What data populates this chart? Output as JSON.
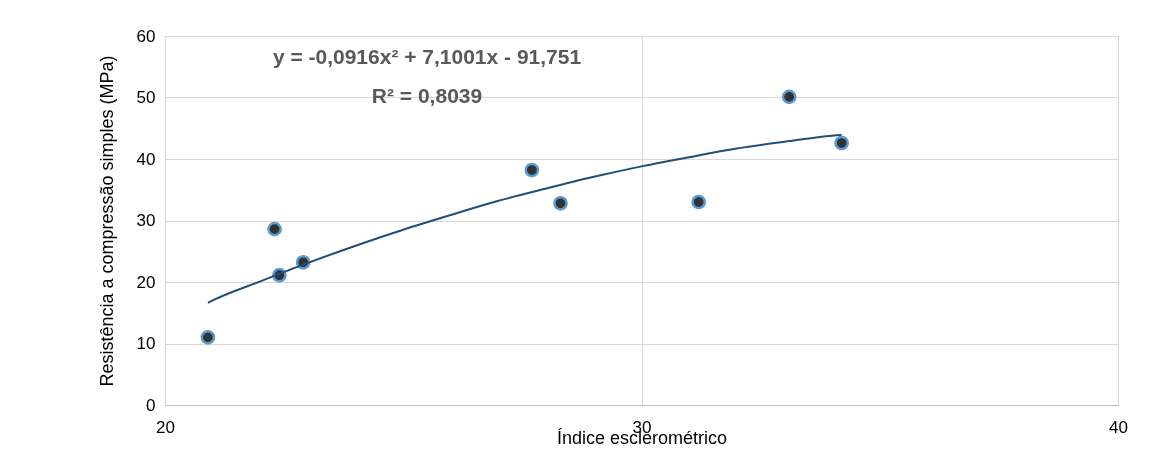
{
  "chart_data": {
    "type": "scatter",
    "xlabel": "Índice esclerométrico",
    "ylabel": "Resistência a compressão simples (MPa)",
    "xlim": [
      20,
      40
    ],
    "xticks": [
      20,
      30,
      40
    ],
    "ylim": [
      0,
      60
    ],
    "yticks": [
      0,
      10,
      20,
      30,
      40,
      50,
      60
    ],
    "grid": true,
    "annotations": [
      "y = -0,0916x² + 7,1001x - 91,751",
      "R² = 0,8039"
    ],
    "series": [
      {
        "color": "#333333",
        "marker": "circle",
        "x": [
          20.9,
          22.3,
          22.4,
          22.9,
          27.7,
          28.3,
          31.2,
          33.1,
          34.2
        ],
        "values": [
          11.0,
          28.6,
          21.1,
          23.2,
          38.2,
          32.8,
          33.0,
          50.1,
          42.6
        ]
      },
      {
        "type": "line",
        "color": "#1f4e79",
        "x": [
          20.9,
          21,
          22,
          23,
          24,
          25,
          26,
          27,
          28,
          29,
          30,
          31,
          32,
          33,
          34,
          34.2
        ],
        "values": [
          16.6,
          17.0,
          20.1,
          23.1,
          25.9,
          28.5,
          30.9,
          33.2,
          35.2,
          37.1,
          38.8,
          40.3,
          41.7,
          42.8,
          43.8,
          43.9
        ]
      }
    ]
  }
}
